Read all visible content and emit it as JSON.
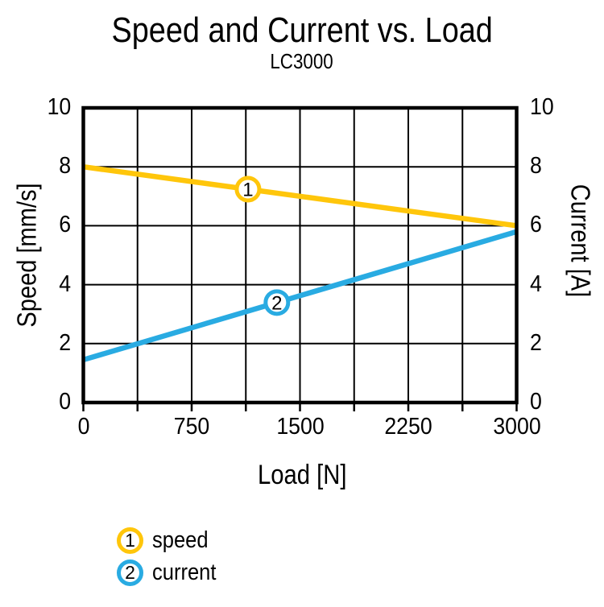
{
  "title": "Speed and Current vs. Load",
  "subtitle": "LC3000",
  "colors": {
    "speed": "#FFC60B",
    "current": "#29ABE2",
    "grid": "#000000",
    "frame": "#000000",
    "background": "#FFFFFF",
    "text": "#000000"
  },
  "chart_data": {
    "type": "line",
    "title": "Speed and Current vs. Load",
    "subtitle": "LC3000",
    "xlabel": "Load [N]",
    "ylabel_left": "Speed [mm/s]",
    "ylabel_right": "Current [A]",
    "xlim": [
      0,
      3000
    ],
    "ylim_left": [
      0,
      10
    ],
    "ylim_right": [
      0,
      10
    ],
    "x_tick_labels": [
      0,
      750,
      1500,
      2250,
      3000
    ],
    "x_grid_step": 375,
    "y_tick_labels_left": [
      0,
      2,
      4,
      6,
      8,
      10
    ],
    "y_tick_labels_right": [
      0,
      2,
      4,
      6,
      8,
      10
    ],
    "y_grid_step": 2,
    "grid": true,
    "legend_position": "bottom-left",
    "series": [
      {
        "name": "speed",
        "axis": "left",
        "marker_number": "1",
        "color": "#FFC60B",
        "points": [
          [
            0,
            8.0
          ],
          [
            3000,
            6.0
          ]
        ],
        "marker_x": 1140
      },
      {
        "name": "current",
        "axis": "right",
        "marker_number": "2",
        "color": "#29ABE2",
        "points": [
          [
            0,
            1.45
          ],
          [
            3000,
            5.8
          ]
        ],
        "marker_x": 1340
      }
    ],
    "legend": [
      {
        "number": "1",
        "label": "speed",
        "color": "#FFC60B"
      },
      {
        "number": "2",
        "label": "current",
        "color": "#29ABE2"
      }
    ]
  }
}
